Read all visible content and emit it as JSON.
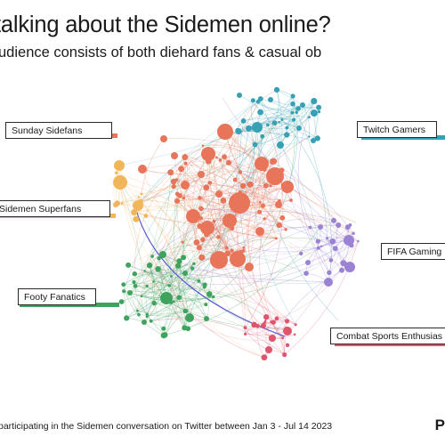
{
  "header": {
    "title": "talking about the Sidemen online?",
    "subtitle": "udience consists of both diehard fans & casual ob"
  },
  "clusters": [
    {
      "id": "sunday",
      "label": "Sunday Sidefans",
      "color": "#e8745a"
    },
    {
      "id": "superfans",
      "label": "Sidemen Superfans",
      "color": "#f2b65a"
    },
    {
      "id": "footy",
      "label": "Footy Fanatics",
      "color": "#3fa35e"
    },
    {
      "id": "twitch",
      "label": "Twitch Gamers",
      "color": "#36a0b5"
    },
    {
      "id": "fifa",
      "label": "FIFA Gaming",
      "color": "#9a82d4"
    },
    {
      "id": "combat",
      "label": "Combat Sports Enthusias",
      "color": "#e0556e"
    }
  ],
  "colors": {
    "bridge_edge": "#5a5ad0"
  },
  "footer": {
    "text": "participating in the Sidemen conversation on Twitter between Jan 3 - Jul 14 2023",
    "brand": "P"
  }
}
